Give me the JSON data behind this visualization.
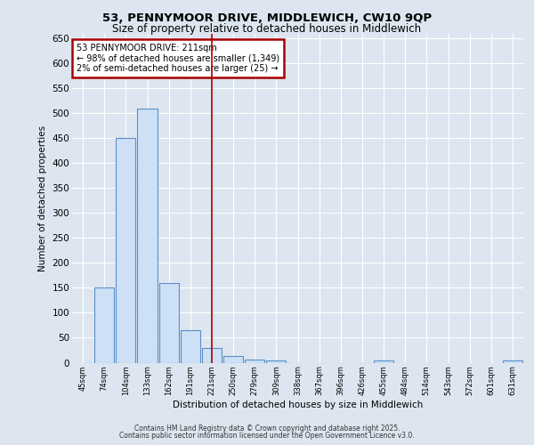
{
  "title_line1": "53, PENNYMOOR DRIVE, MIDDLEWICH, CW10 9QP",
  "title_line2": "Size of property relative to detached houses in Middlewich",
  "xlabel": "Distribution of detached houses by size in Middlewich",
  "ylabel": "Number of detached properties",
  "categories": [
    "45sqm",
    "74sqm",
    "104sqm",
    "133sqm",
    "162sqm",
    "191sqm",
    "221sqm",
    "250sqm",
    "279sqm",
    "309sqm",
    "338sqm",
    "367sqm",
    "396sqm",
    "426sqm",
    "455sqm",
    "484sqm",
    "514sqm",
    "543sqm",
    "572sqm",
    "601sqm",
    "631sqm"
  ],
  "values": [
    0,
    150,
    450,
    510,
    160,
    65,
    30,
    13,
    7,
    5,
    0,
    0,
    0,
    0,
    5,
    0,
    0,
    0,
    0,
    0,
    5
  ],
  "bar_color": "#cde0f5",
  "bar_edge_color": "#5b8fc9",
  "vline_x_index": 6,
  "vline_color": "#aa0000",
  "annotation_title": "53 PENNYMOOR DRIVE: 211sqm",
  "annotation_line1": "← 98% of detached houses are smaller (1,349)",
  "annotation_line2": "2% of semi-detached houses are larger (25) →",
  "annotation_box_color": "#aa0000",
  "ylim": [
    0,
    660
  ],
  "yticks": [
    0,
    50,
    100,
    150,
    200,
    250,
    300,
    350,
    400,
    450,
    500,
    550,
    600,
    650
  ],
  "background_color": "#dde6f0",
  "plot_bg_color": "#dde6f0",
  "footer_line1": "Contains HM Land Registry data © Crown copyright and database right 2025.",
  "footer_line2": "Contains public sector information licensed under the Open Government Licence v3.0."
}
